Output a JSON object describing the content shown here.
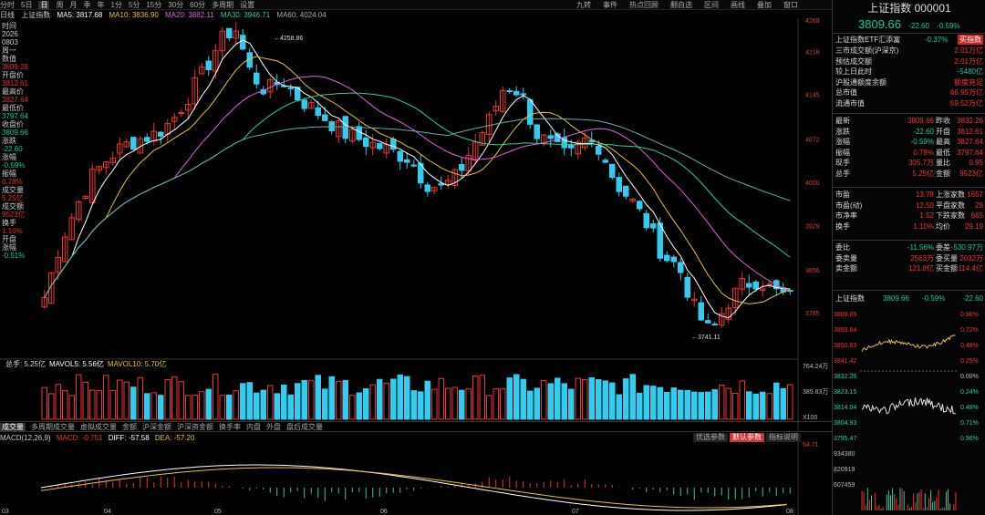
{
  "toolbar": {
    "items": [
      "分时",
      "5日",
      "日",
      "周",
      "月",
      "季",
      "年",
      "1分",
      "5分",
      "15分",
      "30分",
      "60分",
      "多周期",
      "设置"
    ],
    "right": [
      "九转",
      "事件",
      "热点回顾",
      "翻自选",
      "区间",
      "画线",
      "叠加",
      "窗口"
    ]
  },
  "ma": {
    "title": "日线",
    "name": "上证指数",
    "ma5": "MA5: 3817.68",
    "ma10": "MA10: 3836.90",
    "ma20": "MA20: 3882.11",
    "ma30": "MA30: 3946.71",
    "ma60": "MA60: 4024.04"
  },
  "info": [
    [
      "时间",
      ""
    ],
    [
      "2026",
      ""
    ],
    [
      "0803",
      ""
    ],
    [
      "周一",
      ""
    ],
    [
      "数值",
      ""
    ],
    [
      "3809.28",
      "r"
    ],
    [
      "开盘价",
      ""
    ],
    [
      "3812.61",
      "r"
    ],
    [
      "最高价",
      ""
    ],
    [
      "3827.64",
      "r"
    ],
    [
      "最低价",
      ""
    ],
    [
      "3797.64",
      "g"
    ],
    [
      "收盘价",
      ""
    ],
    [
      "3809.66",
      "g"
    ],
    [
      "涨跌",
      ""
    ],
    [
      "-22.60",
      "g"
    ],
    [
      "涨幅",
      ""
    ],
    [
      "-0.59%",
      "g"
    ],
    [
      "振幅",
      ""
    ],
    [
      "0.78%",
      "r"
    ],
    [
      "成交量",
      ""
    ],
    [
      "5.25亿",
      "r"
    ],
    [
      "成交额",
      ""
    ],
    [
      "9523亿",
      "r"
    ],
    [
      "换手",
      ""
    ],
    [
      "1.10%",
      "r"
    ],
    [
      "开盘",
      ""
    ],
    [
      "涨幅",
      ""
    ],
    [
      "-0.51%",
      "g"
    ]
  ],
  "yaxis": [
    "4268",
    "4216",
    "4145",
    "4072",
    "4000",
    "3929",
    "3856",
    "3785"
  ],
  "price_hi": "4258.86",
  "price_lo": "3741.11",
  "xaxis": [
    "03",
    "04",
    "05",
    "06",
    "07",
    "08"
  ],
  "vol": {
    "total": "总手: 5.25亿",
    "mavol5": "MAVOL5: 5.56亿",
    "mavol10": "MAVOL10: 5.70亿",
    "axis": [
      "764.24万",
      "385.83万",
      "X100"
    ]
  },
  "subtabs": [
    "成交量",
    "多周期成交量",
    "虚拟成交量",
    "金额",
    "沪深金额",
    "沪深资金额",
    "换手率",
    "内盘",
    "外盘",
    "盘后成交量"
  ],
  "macd": {
    "label": "MACD(12,26,9)",
    "macd": "MACD: -0.751",
    "diff": "DIFF: -57.58",
    "dea": "DEA: -57.20",
    "axis": "54.71",
    "btns": [
      "优选参数",
      "默认参数",
      "指标说明"
    ]
  },
  "panel": {
    "title": "上证指数 000001",
    "price": "3809.66",
    "chg": "-22.60",
    "pct": "-0.59%",
    "etf": "上证指数ETF汇添富",
    "etf_pct": "-0.37%",
    "buy": "买指数",
    "r1": [
      [
        "三市成交额(沪深京)",
        "2.01万亿"
      ],
      [
        "预估成交额",
        "2.01万亿"
      ],
      [
        "较上日此时",
        "-5480亿"
      ],
      [
        "沪股通额度余额",
        "额度充足"
      ],
      [
        "总市值",
        "66.95万亿"
      ],
      [
        "流通市值",
        "59.52万亿"
      ]
    ],
    "q": [
      [
        "最新",
        "3809.66",
        "昨收",
        "3832.26"
      ],
      [
        "涨跌",
        "-22.60",
        "开盘",
        "3812.61"
      ],
      [
        "涨幅",
        "-0.59%",
        "最高",
        "3827.64"
      ],
      [
        "振幅",
        "0.78%",
        "最低",
        "3797.64"
      ],
      [
        "现手",
        "305.7万",
        "量比",
        "0.95"
      ],
      [
        "总手",
        "5.25亿",
        "金额",
        "9523亿"
      ]
    ],
    "s": [
      [
        "市盈",
        "13.78",
        "上涨家数",
        "1657"
      ],
      [
        "市盈(动)",
        "12.50",
        "平盘家数",
        "29"
      ],
      [
        "市净率",
        "1.52",
        "下跌家数",
        "665"
      ],
      [
        "换手",
        "1.10%",
        "均价",
        "29.19"
      ]
    ],
    "w": [
      [
        "委比",
        "-11.56%",
        "委差",
        "-530.97万"
      ],
      [
        "委卖量",
        "2563万",
        "委买量",
        "2032万"
      ],
      [
        "卖金额",
        "121.8亿",
        "买金额",
        "114.4亿"
      ]
    ],
    "mini": {
      "name": "上证指数",
      "p": "3809.66",
      "pct": "-0.59%",
      "chg": "-22.60",
      "la": [
        "3869.05",
        "3859.84",
        "3850.63",
        "3841.42",
        "3832.26",
        "3823.15",
        "3814.04",
        "3804.93",
        "3795.47",
        "934380",
        "820919",
        "607459"
      ],
      "ra": [
        "0.96%",
        "0.72%",
        "0.48%",
        "0.25%",
        "0.00%",
        "0.24%",
        "0.48%",
        "0.71%",
        "0.96%"
      ]
    }
  }
}
